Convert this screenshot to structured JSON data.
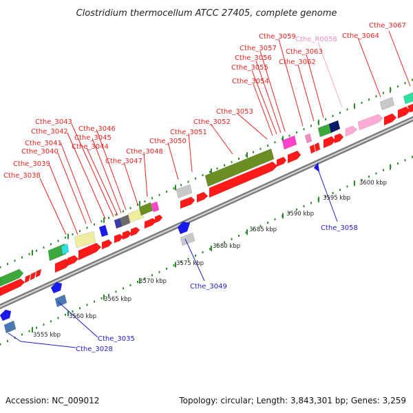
{
  "title": "Clostridium thermocellum ATCC 27405, complete genome",
  "footer": {
    "accession": "Accession: NC_009012",
    "summary": "Topology: circular; Length: 3,843,301 bp; Genes: 3,259"
  },
  "colors": {
    "red_label": "#e8231e",
    "blue_label": "#1c1cc8",
    "pink_label": "#f08cc0",
    "backbone": "#9a9a9a",
    "tick": "#2e8b2e"
  },
  "scale_labels": [
    "3555 kbp",
    "3560 kbp",
    "3565 kbp",
    "3570 kbp",
    "3575 kbp",
    "3580 kbp",
    "3585 kbp",
    "3590 kbp",
    "3595 kbp",
    "3600 kbp"
  ],
  "gene_labels_top": [
    "Cthe_3038",
    "Cthe_3039",
    "Cthe_3040",
    "Cthe_3041",
    "Cthe_3042",
    "Cthe_3043",
    "Cthe_3044",
    "Cthe_3045",
    "Cthe_3046",
    "Cthe_3047",
    "Cthe_3048",
    "Cthe_3050",
    "Cthe_3051",
    "Cthe_3052",
    "Cthe_3053",
    "Cthe_3054",
    "Cthe_3055",
    "Cthe_3056",
    "Cthe_3057",
    "Cthe_3059",
    "Cthe_3062",
    "Cthe_3063",
    "Cthe_R0058",
    "Cthe_3064",
    "Cthe_3067"
  ],
  "gene_labels_bottom": [
    "Cthe_3028",
    "Cthe_3035",
    "Cthe_3049",
    "Cthe_3058"
  ]
}
